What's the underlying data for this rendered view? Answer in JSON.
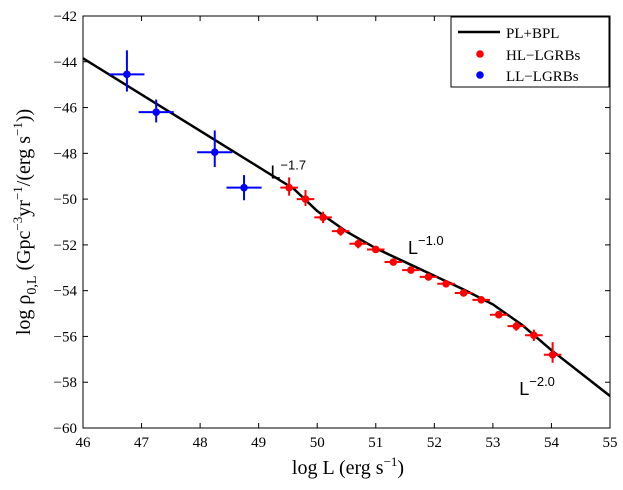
{
  "chart_data": {
    "type": "scatter",
    "xlabel_main": "log L (erg s",
    "xlabel_sup": "−1",
    "xlabel_end": ")",
    "ylabel_log": "log ρ",
    "ylabel_sub": "0,L",
    "ylabel_a": " (Gpc",
    "ylabel_sup1": "−3",
    "ylabel_b": "yr",
    "ylabel_sup2": "−1",
    "ylabel_c": "/(erg s",
    "ylabel_sup3": "−1",
    "ylabel_d": "))",
    "xlim": [
      46,
      55
    ],
    "ylim": [
      -60,
      -42
    ],
    "xticks": [
      46,
      47,
      48,
      49,
      50,
      51,
      52,
      53,
      54,
      55
    ],
    "yticks": [
      -60,
      -58,
      -56,
      -54,
      -52,
      -50,
      -48,
      -46,
      -44,
      -42
    ],
    "xtick_labels": [
      "46",
      "47",
      "48",
      "49",
      "50",
      "51",
      "52",
      "53",
      "54",
      "55"
    ],
    "ytick_labels": [
      "−60",
      "−58",
      "−56",
      "−54",
      "−52",
      "−50",
      "−48",
      "−46",
      "−44",
      "−42"
    ],
    "model_line": {
      "name": "PL+BPL",
      "x": [
        46,
        49.6,
        50.0,
        50.5,
        51.0,
        51.5,
        52.0,
        52.5,
        53.0,
        53.5,
        54.0,
        55
      ],
      "y": [
        -43.85,
        -49.55,
        -50.52,
        -51.42,
        -52.15,
        -52.75,
        -53.35,
        -53.95,
        -54.6,
        -55.5,
        -56.6,
        -58.6
      ]
    },
    "series": [
      {
        "name": "HL−LGRBs",
        "color": "#ff0000",
        "x": [
          49.52,
          49.8,
          50.1,
          50.4,
          50.7,
          51.0,
          51.3,
          51.6,
          51.9,
          52.2,
          52.5,
          52.8,
          53.1,
          53.4,
          53.7,
          54.02
        ],
        "y": [
          -49.5,
          -50.0,
          -50.8,
          -51.4,
          -51.95,
          -52.2,
          -52.75,
          -53.1,
          -53.4,
          -53.7,
          -54.1,
          -54.4,
          -55.05,
          -55.55,
          -55.95,
          -56.8
        ],
        "xerr": [
          0.15,
          0.15,
          0.15,
          0.15,
          0.15,
          0.15,
          0.15,
          0.15,
          0.15,
          0.15,
          0.15,
          0.15,
          0.15,
          0.15,
          0.15,
          0.15
        ],
        "yerr_up": [
          0.45,
          0.4,
          0.25,
          0.2,
          0.2,
          0.1,
          0.1,
          0.1,
          0.1,
          0.1,
          0.1,
          0.1,
          0.15,
          0.2,
          0.25,
          0.55
        ],
        "yerr_down": [
          0.35,
          0.3,
          0.25,
          0.2,
          0.2,
          0.1,
          0.1,
          0.1,
          0.1,
          0.1,
          0.1,
          0.1,
          0.15,
          0.2,
          0.25,
          0.35
        ]
      },
      {
        "name": "LL−LGRBs",
        "color": "#0000ff",
        "x": [
          46.75,
          47.25,
          48.25,
          48.75
        ],
        "y": [
          -44.55,
          -46.2,
          -47.95,
          -49.5
        ],
        "xerr": [
          0.3,
          0.3,
          0.3,
          0.3
        ],
        "yerr_up": [
          1.05,
          0.55,
          0.95,
          0.55
        ],
        "yerr_down": [
          0.75,
          0.45,
          0.65,
          0.55
        ]
      }
    ],
    "annotations": [
      {
        "base": "L",
        "sup": "−1.7",
        "x": 49.2,
        "y": -49.1
      },
      {
        "base": "L",
        "sup": "−1.0",
        "x": 51.55,
        "y": -52.4
      },
      {
        "base": "L",
        "sup": "−2.0",
        "x": 53.45,
        "y": -58.55
      }
    ],
    "legend": {
      "position": "top-right",
      "entries": [
        "PL+BPL",
        "HL−LGRBs",
        "LL−LGRBs"
      ]
    }
  }
}
